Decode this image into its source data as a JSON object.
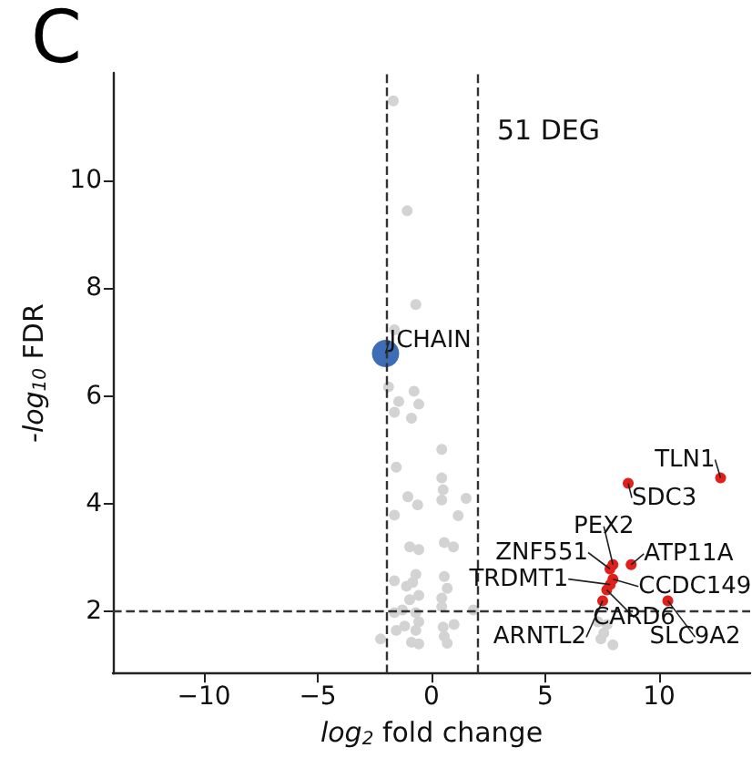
{
  "chart_data": {
    "type": "scatter",
    "title": "C",
    "xlabel": "log$_{2}$ fold change",
    "ylabel": "-log$_{10}$ FDR",
    "xlim": [
      -14,
      14
    ],
    "xticks": [
      -10,
      -5,
      0,
      5,
      10
    ],
    "ylim": [
      0.85,
      12
    ],
    "yticks": [
      2,
      4,
      6,
      8,
      10
    ],
    "grid": false,
    "marker": "circle",
    "series": [
      {
        "color": "#d3d3d3",
        "x": [
          -1.68,
          -1.07,
          -0.69,
          -1.63,
          -1.89,
          -1.44,
          -1.63,
          -0.77,
          -0.56,
          -0.88,
          0.45,
          -1.55,
          0.45,
          0.51,
          0.45,
          1.52,
          -1.04,
          -0.61,
          -1.63,
          1.17,
          -0.96,
          -0.56,
          0.56,
          0.96,
          -1.63,
          -1.1,
          -0.69,
          -0.83,
          -0.56,
          -0.96,
          0.56,
          0.69,
          0.45,
          -1.28,
          -1.63,
          0.45,
          -0.69,
          -0.56,
          -0.69,
          -1.55,
          -1.18,
          -2.24,
          -0.88,
          -0.56,
          0.51,
          0.99,
          0.56,
          0.69,
          1.84,
          7.31,
          7.57,
          7.44,
          7.97,
          7.71
        ],
        "values": [
          11.48,
          9.44,
          7.7,
          7.23,
          6.17,
          5.9,
          5.7,
          6.09,
          5.85,
          5.59,
          5.01,
          4.68,
          4.48,
          4.26,
          4.07,
          4.1,
          4.13,
          3.98,
          3.79,
          3.78,
          3.2,
          3.15,
          3.28,
          3.2,
          2.57,
          2.47,
          2.69,
          2.54,
          2.3,
          2.22,
          2.65,
          2.43,
          2.25,
          2.03,
          1.98,
          2.09,
          1.98,
          1.81,
          1.65,
          1.65,
          1.73,
          1.49,
          1.43,
          1.4,
          1.71,
          1.76,
          1.54,
          1.41,
          2.03,
          1.81,
          1.6,
          1.49,
          1.38,
          1.76
        ]
      },
      {
        "color": "#e0201b",
        "x": [
          12.7,
          8.64,
          7.97,
          7.84,
          8.77,
          7.97,
          7.85,
          7.7,
          7.52,
          10.38
        ],
        "values": [
          4.48,
          4.38,
          2.87,
          2.79,
          2.87,
          2.6,
          2.5,
          2.4,
          2.2,
          2.2
        ]
      },
      {
        "color": "#3d6db5",
        "x": [
          -2.02
        ],
        "values": [
          6.79
        ]
      }
    ],
    "ref_lines": [
      {
        "axis": "x",
        "value": -2,
        "color": "#333333",
        "line_style": "dashed"
      },
      {
        "axis": "x",
        "value": 2,
        "color": "#333333",
        "line_style": "dashed"
      },
      {
        "axis": "y",
        "value": 2,
        "color": "#333333",
        "line_style": "dashed"
      }
    ],
    "annotations": [
      "51 DEG",
      {
        "text": "TLN1",
        "x": 12.7,
        "y": 4.48
      },
      {
        "text": "SDC3",
        "x": 8.64,
        "y": 4.38
      },
      {
        "text": "PEX2",
        "x": 7.97,
        "y": 2.87
      },
      {
        "text": "ZNF551",
        "x": 7.84,
        "y": 2.79
      },
      {
        "text": "ATP11A",
        "x": 8.77,
        "y": 2.87
      },
      {
        "text": "CCDC149",
        "x": 7.97,
        "y": 2.6
      },
      {
        "text": "TRDMT1",
        "x": 7.85,
        "y": 2.5
      },
      {
        "text": "CARD6",
        "x": 7.7,
        "y": 2.4
      },
      {
        "text": "ARNTL2",
        "x": 7.52,
        "y": 2.2
      },
      {
        "text": "SLC9A2",
        "x": 10.38,
        "y": 2.2
      },
      {
        "text": "JCHAIN",
        "x": -2.02,
        "y": 6.79
      }
    ]
  }
}
